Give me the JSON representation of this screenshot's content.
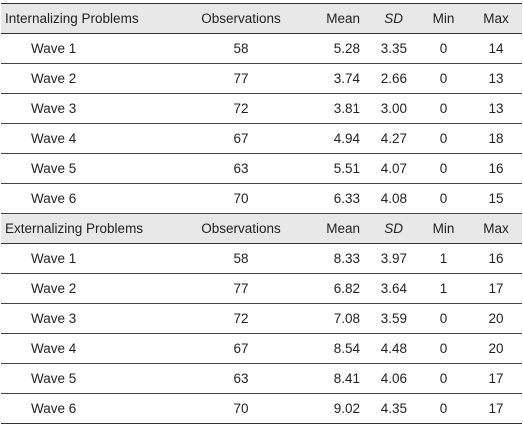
{
  "sections": [
    {
      "title": "Internalizing Problems",
      "columns": [
        "Observations",
        "Mean",
        "SD",
        "Min",
        "Max"
      ],
      "rows": [
        {
          "label": "Wave 1",
          "obs": "58",
          "mean": "5.28",
          "sd": "3.35",
          "min": "0",
          "max": "14"
        },
        {
          "label": "Wave 2",
          "obs": "77",
          "mean": "3.74",
          "sd": "2.66",
          "min": "0",
          "max": "13"
        },
        {
          "label": "Wave 3",
          "obs": "72",
          "mean": "3.81",
          "sd": "3.00",
          "min": "0",
          "max": "13"
        },
        {
          "label": "Wave 4",
          "obs": "67",
          "mean": "4.94",
          "sd": "4.27",
          "min": "0",
          "max": "18"
        },
        {
          "label": "Wave 5",
          "obs": "63",
          "mean": "5.51",
          "sd": "4.07",
          "min": "0",
          "max": "16"
        },
        {
          "label": "Wave 6",
          "obs": "70",
          "mean": "6.33",
          "sd": "4.08",
          "min": "0",
          "max": "15"
        }
      ]
    },
    {
      "title": "Externalizing Problems",
      "columns": [
        "Observations",
        "Mean",
        "SD",
        "Min",
        "Max"
      ],
      "rows": [
        {
          "label": "Wave 1",
          "obs": "58",
          "mean": "8.33",
          "sd": "3.97",
          "min": "1",
          "max": "16"
        },
        {
          "label": "Wave 2",
          "obs": "77",
          "mean": "6.82",
          "sd": "3.64",
          "min": "1",
          "max": "17"
        },
        {
          "label": "Wave 3",
          "obs": "72",
          "mean": "7.08",
          "sd": "3.59",
          "min": "0",
          "max": "20"
        },
        {
          "label": "Wave 4",
          "obs": "67",
          "mean": "8.54",
          "sd": "4.48",
          "min": "0",
          "max": "20"
        },
        {
          "label": "Wave 5",
          "obs": "63",
          "mean": "8.41",
          "sd": "4.06",
          "min": "0",
          "max": "17"
        },
        {
          "label": "Wave 6",
          "obs": "70",
          "mean": "9.02",
          "sd": "4.35",
          "min": "0",
          "max": "17"
        }
      ]
    }
  ]
}
